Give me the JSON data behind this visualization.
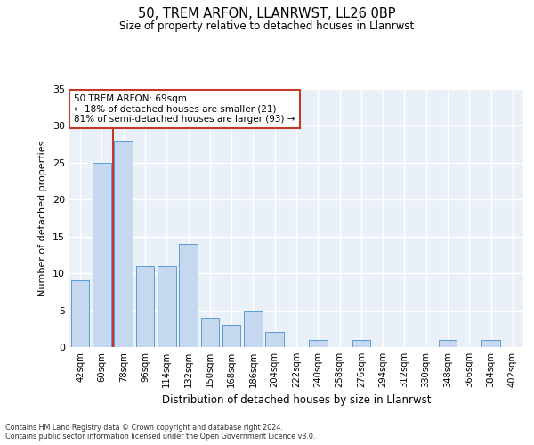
{
  "title1": "50, TREM ARFON, LLANRWST, LL26 0BP",
  "title2": "Size of property relative to detached houses in Llanrwst",
  "xlabel": "Distribution of detached houses by size in Llanrwst",
  "ylabel": "Number of detached properties",
  "annotation_line1": "50 TREM ARFON: 69sqm",
  "annotation_line2": "← 18% of detached houses are smaller (21)",
  "annotation_line3": "81% of semi-detached houses are larger (93) →",
  "bar_labels": [
    "42sqm",
    "60sqm",
    "78sqm",
    "96sqm",
    "114sqm",
    "132sqm",
    "150sqm",
    "168sqm",
    "186sqm",
    "204sqm",
    "222sqm",
    "240sqm",
    "258sqm",
    "276sqm",
    "294sqm",
    "312sqm",
    "330sqm",
    "348sqm",
    "366sqm",
    "384sqm",
    "402sqm"
  ],
  "bar_values": [
    9,
    25,
    28,
    11,
    11,
    14,
    4,
    3,
    5,
    2,
    0,
    1,
    0,
    1,
    0,
    0,
    0,
    1,
    0,
    1,
    0
  ],
  "bar_color": "#c5d8f0",
  "bar_edgecolor": "#5b9bd5",
  "vline_color": "#c0392b",
  "vline_x": 1.5,
  "ylim": [
    0,
    35
  ],
  "yticks": [
    0,
    5,
    10,
    15,
    20,
    25,
    30,
    35
  ],
  "bg_color": "#eaf0f8",
  "grid_color": "#ffffff",
  "footer1": "Contains HM Land Registry data © Crown copyright and database right 2024.",
  "footer2": "Contains public sector information licensed under the Open Government Licence v3.0."
}
